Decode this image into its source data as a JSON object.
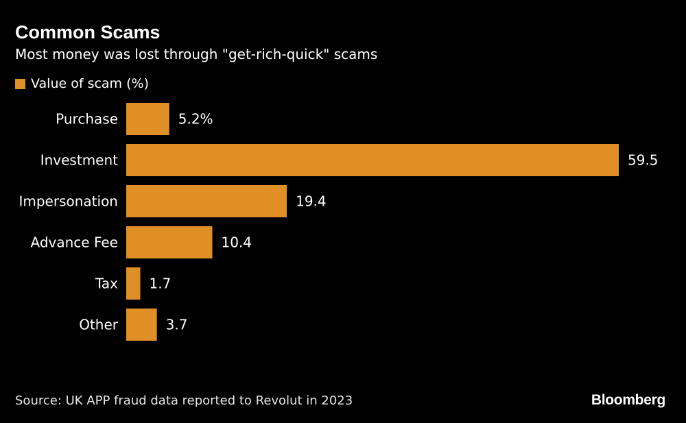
{
  "header": {
    "title": "Common Scams",
    "subtitle": "Most money was lost through \"get-rich-quick\" scams"
  },
  "legend": {
    "label": "Value of scam (%)"
  },
  "colors": {
    "bar": "#e08f27",
    "background": "#000000",
    "text": "#ffffff"
  },
  "chart_data": {
    "type": "bar",
    "orientation": "horizontal",
    "title": "Common Scams",
    "subtitle": "Most money was lost through \"get-rich-quick\" scams",
    "categories": [
      "Purchase",
      "Investment",
      "Impersonation",
      "Advance Fee",
      "Tax",
      "Other"
    ],
    "series": [
      {
        "name": "Value of scam (%)",
        "values": [
          5.2,
          59.5,
          19.4,
          10.4,
          1.7,
          3.7
        ],
        "labels": [
          "5.2%",
          "59.5",
          "19.4",
          "10.4",
          "1.7",
          "3.7"
        ]
      }
    ],
    "xlim": [
      0,
      59.5
    ],
    "grid": false,
    "legend_position": "top-left"
  },
  "footer": {
    "source": "Source: UK APP fraud data reported to Revolut in 2023",
    "logo": "Bloomberg"
  }
}
